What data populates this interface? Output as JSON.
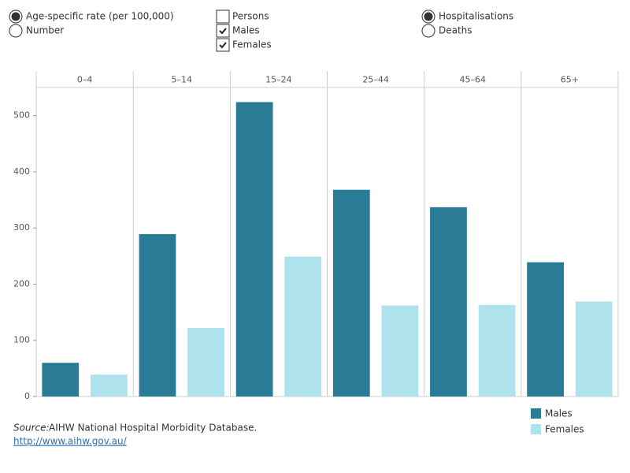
{
  "controls": {
    "measure": [
      {
        "label": "Age-specific rate (per 100,000)",
        "selected": true
      },
      {
        "label": "Number",
        "selected": false
      }
    ],
    "sex": [
      {
        "label": "Persons",
        "checked": false
      },
      {
        "label": "Males",
        "checked": true
      },
      {
        "label": "Females",
        "checked": true
      }
    ],
    "outcome": [
      {
        "label": "Hospitalisations",
        "selected": true
      },
      {
        "label": "Deaths",
        "selected": false
      }
    ]
  },
  "chart_data": {
    "type": "bar",
    "categories": [
      "0–4",
      "5–14",
      "15–24",
      "25–44",
      "45–64",
      "65+"
    ],
    "series": [
      {
        "name": "Males",
        "color": "#2a7b96",
        "values": [
          60,
          289,
          524,
          368,
          337,
          239
        ]
      },
      {
        "name": "Females",
        "color": "#aee3ed",
        "values": [
          39,
          122,
          249,
          162,
          163,
          169
        ]
      }
    ],
    "ylim": [
      0,
      550
    ],
    "yticks": [
      0,
      100,
      200,
      300,
      400,
      500
    ],
    "grid": false,
    "legend": "bottom-right"
  },
  "source": {
    "label": "Source:",
    "text": "AIHW National Hospital Morbidity Database.",
    "link": "http://www.aihw.gov.au/"
  }
}
